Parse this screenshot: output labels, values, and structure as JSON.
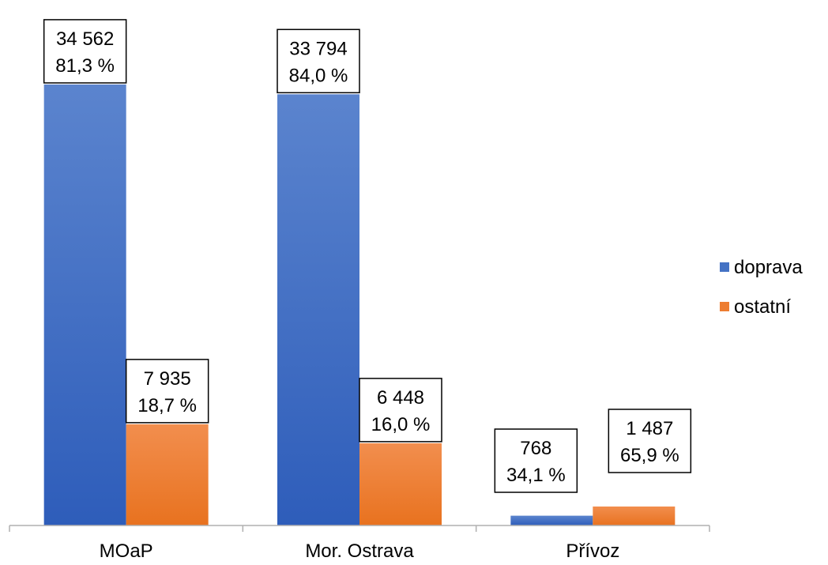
{
  "chart_data": {
    "type": "bar",
    "categories": [
      "MOaP",
      "Mor. Ostrava",
      "Přívoz"
    ],
    "series": [
      {
        "name": "doprava",
        "color": "#4472C4",
        "values": [
          34562,
          33794,
          768
        ],
        "value_labels": [
          "34 562",
          "33 794",
          "768"
        ],
        "percent_labels": [
          "81,3 %",
          "84,0 %",
          "34,1 %"
        ]
      },
      {
        "name": "ostatní",
        "color": "#ED7D31",
        "values": [
          7935,
          6448,
          1487
        ],
        "value_labels": [
          "7 935",
          "6 448",
          "1 487"
        ],
        "percent_labels": [
          "18,7 %",
          "16,0 %",
          "65,9 %"
        ]
      }
    ],
    "title": "",
    "xlabel": "",
    "ylabel": "",
    "ylim": [
      0,
      35300
    ],
    "grid": false,
    "legend_position": "right"
  }
}
